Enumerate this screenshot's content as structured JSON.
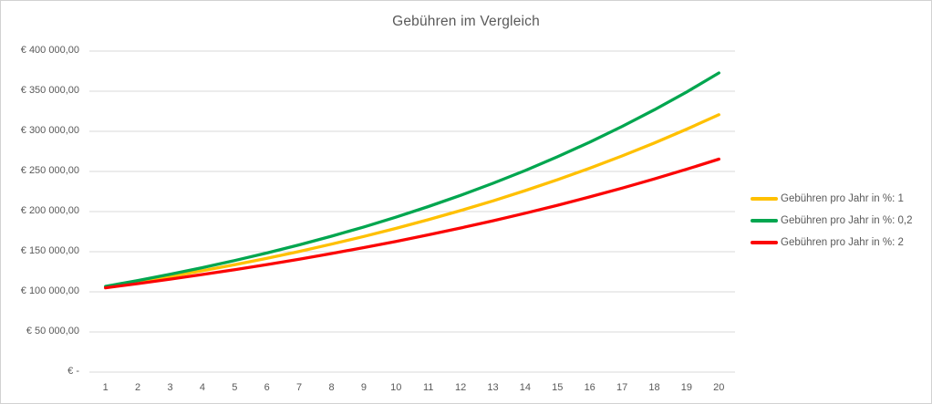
{
  "frame": {
    "background": "#ffffff",
    "border_color": "#d2d2d2"
  },
  "chart_data": {
    "type": "line",
    "title": "Gebühren im Vergleich",
    "xlabel": "",
    "ylabel": "",
    "x": [
      1,
      2,
      3,
      4,
      5,
      6,
      7,
      8,
      9,
      10,
      11,
      12,
      13,
      14,
      15,
      16,
      17,
      18,
      19,
      20
    ],
    "series": [
      {
        "name": "Gebühren pro Jahr in %: 1",
        "color": "#FFC000",
        "values": [
          106000,
          112360,
          119102,
          126248,
          133823,
          141852,
          150363,
          159385,
          168948,
          179085,
          189830,
          201220,
          213293,
          226090,
          239656,
          254035,
          269277,
          285434,
          302560,
          320714
        ]
      },
      {
        "name": "Gebühren pro Jahr in %: 0,2",
        "color": "#00A64F",
        "values": [
          106800,
          114062,
          121819,
          130102,
          138949,
          148398,
          158489,
          169266,
          180776,
          193069,
          206198,
          220219,
          235194,
          251187,
          268268,
          286510,
          305993,
          326800,
          349023,
          372756
        ]
      },
      {
        "name": "Gebühren pro Jahr in %: 2",
        "color": "#FB0505",
        "values": [
          105000,
          110250,
          115763,
          121551,
          127628,
          134010,
          140710,
          147746,
          155133,
          162889,
          171034,
          179586,
          188565,
          197993,
          207893,
          218287,
          229202,
          240662,
          252695,
          265330
        ]
      }
    ],
    "ylim": [
      0,
      400000
    ],
    "y_ticks": [
      {
        "value": 0,
        "label": "€ -"
      },
      {
        "value": 50000,
        "label": "€ 50 000,00"
      },
      {
        "value": 100000,
        "label": "€ 100 000,00"
      },
      {
        "value": 150000,
        "label": "€ 150 000,00"
      },
      {
        "value": 200000,
        "label": "€ 200 000,00"
      },
      {
        "value": 250000,
        "label": "€ 250 000,00"
      },
      {
        "value": 300000,
        "label": "€ 300 000,00"
      },
      {
        "value": 350000,
        "label": "€ 350 000,00"
      },
      {
        "value": 400000,
        "label": "€ 400 000,00"
      }
    ],
    "grid": true,
    "legend_position": "right",
    "styles": {
      "title_color": "#595959",
      "tick_color": "#595959",
      "grid_color": "#D9D9D9",
      "line_width": 3.3
    }
  }
}
